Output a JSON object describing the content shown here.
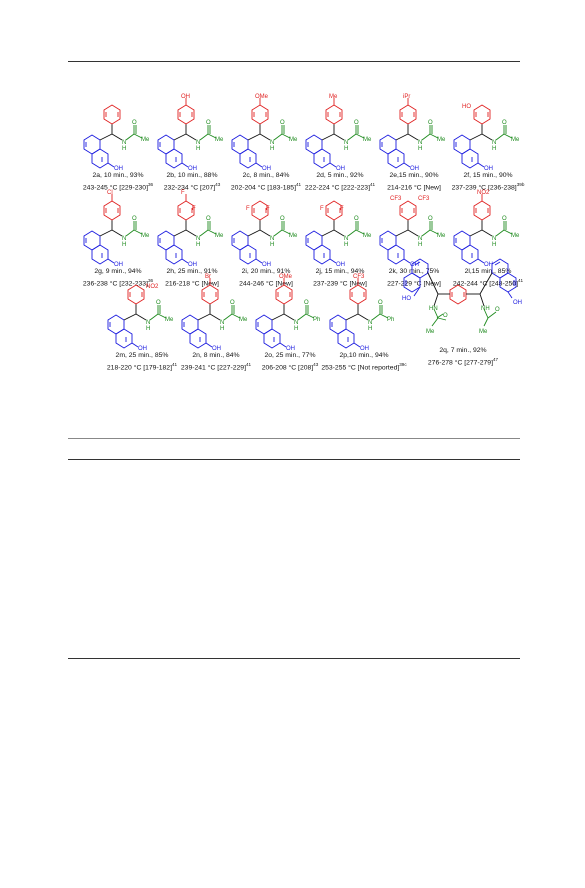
{
  "figure": {
    "compounds": [
      {
        "id": "2a",
        "caption": "2a, 10 min., 93%",
        "mp": "243-245 °C [229-230]",
        "ref": "36",
        "substituent": "",
        "acyl": "Me"
      },
      {
        "id": "2b",
        "caption": "2b, 10 min., 88%",
        "mp": "232-234 °C [207]",
        "ref": "43",
        "substituent": "OH",
        "acyl": "Me"
      },
      {
        "id": "2c",
        "caption": "2c, 8 min., 84%",
        "mp": "202-204 °C [183-185]",
        "ref": "41",
        "substituent": "OMe",
        "acyl": "Me"
      },
      {
        "id": "2d",
        "caption": "2d, 5 min., 92%",
        "mp": "222-224 °C [222-223]",
        "ref": "41",
        "substituent": "Me",
        "acyl": "Me"
      },
      {
        "id": "2e",
        "caption": "2e,15 min., 90%",
        "mp": "214-216 °C [New]",
        "ref": "",
        "substituent": "iPr",
        "acyl": "Me"
      },
      {
        "id": "2f",
        "caption": "2f, 15 min., 90%",
        "mp": "237-239 °C [236-238]",
        "ref": "39b",
        "substituent": "HO",
        "acyl": "Me"
      },
      {
        "id": "2g",
        "caption": "2g, 9 min., 94%",
        "mp": "236-238 °C [232-233]",
        "ref": "36",
        "substituent": "Cl",
        "acyl": "Me"
      },
      {
        "id": "2h",
        "caption": "2h, 25 min., 91%",
        "mp": "216-218 °C [New]",
        "ref": "",
        "substituent": "F",
        "acyl": "Me"
      },
      {
        "id": "2i",
        "caption": "2i, 20 min., 91%",
        "mp": "244-246 °C [New]",
        "ref": "",
        "substituent": "F",
        "acyl": "Me"
      },
      {
        "id": "2j",
        "caption": "2j, 15 min., 94%",
        "mp": "237-239 °C [New]",
        "ref": "",
        "substituent": "F",
        "acyl": "Me"
      },
      {
        "id": "2k",
        "caption": "2k, 30 min., 75%",
        "mp": "227-229 °C [New]",
        "ref": "",
        "substituent": "CF3",
        "acyl": "Me"
      },
      {
        "id": "2l",
        "caption": "2l,15 min., 85%",
        "mp": "242-244 °C [248-250]",
        "ref": "41",
        "substituent": "NO2",
        "acyl": "Me"
      },
      {
        "id": "2m",
        "caption": "2m, 25 min., 85%",
        "mp": "218-220 °C [179-182]",
        "ref": "41",
        "substituent": "NO2",
        "acyl": "Me"
      },
      {
        "id": "2n",
        "caption": "2n, 8 min., 84%",
        "mp": "239-241 °C [227-229]",
        "ref": "41",
        "substituent": "Br",
        "acyl": "Me"
      },
      {
        "id": "2o",
        "caption": "2o, 25 min., 77%",
        "mp": "206-208 °C [208]",
        "ref": "43",
        "substituent": "OMe",
        "acyl": "Ph"
      },
      {
        "id": "2p",
        "caption": "2p,10 min., 94%",
        "mp": "253-255 °C [Not reported]",
        "ref": "39c",
        "substituent": "CF3",
        "acyl": "Ph"
      }
    ],
    "bis": {
      "id": "2q",
      "caption": "2q, 7 min., 92%",
      "mp": "276-278 °C [277-279]",
      "ref": "47"
    }
  },
  "colors": {
    "naphthol": "#1a1adf",
    "aryl": "#e02020",
    "amide": "#1e8a1e",
    "ink": "#111111"
  }
}
